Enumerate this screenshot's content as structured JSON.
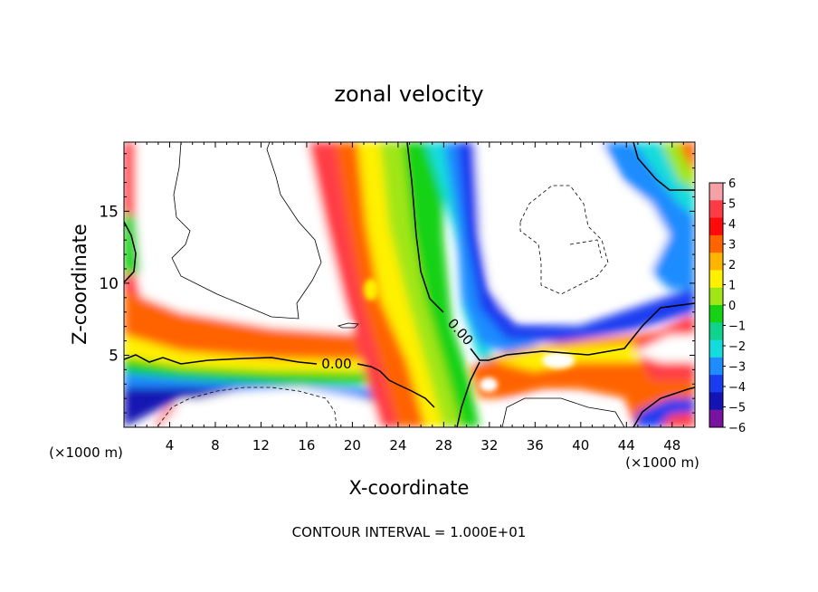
{
  "chart_data": {
    "type": "heatmap",
    "title": "zonal velocity",
    "xlabel": "X-coordinate",
    "ylabel": "Z-coordinate",
    "x_unit_label": "(×1000 m)",
    "z_unit_label": "(×1000 m)",
    "xlim": [
      0,
      50
    ],
    "ylim": [
      0,
      19.8
    ],
    "x_ticks": [
      4,
      8,
      12,
      16,
      20,
      24,
      28,
      32,
      36,
      40,
      44,
      48
    ],
    "y_ticks": [
      5,
      10,
      15
    ],
    "colorbar": {
      "min": -6,
      "max": 6,
      "tick_labels": [
        "6",
        "5",
        "4",
        "3",
        "2",
        "1",
        "0",
        "−1",
        "−2",
        "−3",
        "−4",
        "−5",
        "−6"
      ],
      "colors": [
        "#f6a0a8",
        "#ff3c46",
        "#ff0a0a",
        "#ff6400",
        "#ffb400",
        "#fff000",
        "#a0e614",
        "#14d214",
        "#0fd28c",
        "#14dcdc",
        "#1e8cff",
        "#1a3cf0",
        "#1414b4",
        "#7814a0"
      ]
    },
    "contour_labels": [
      "0.00",
      "0.00"
    ],
    "footer": "CONTOUR INTERVAL = 1.000E+01"
  }
}
